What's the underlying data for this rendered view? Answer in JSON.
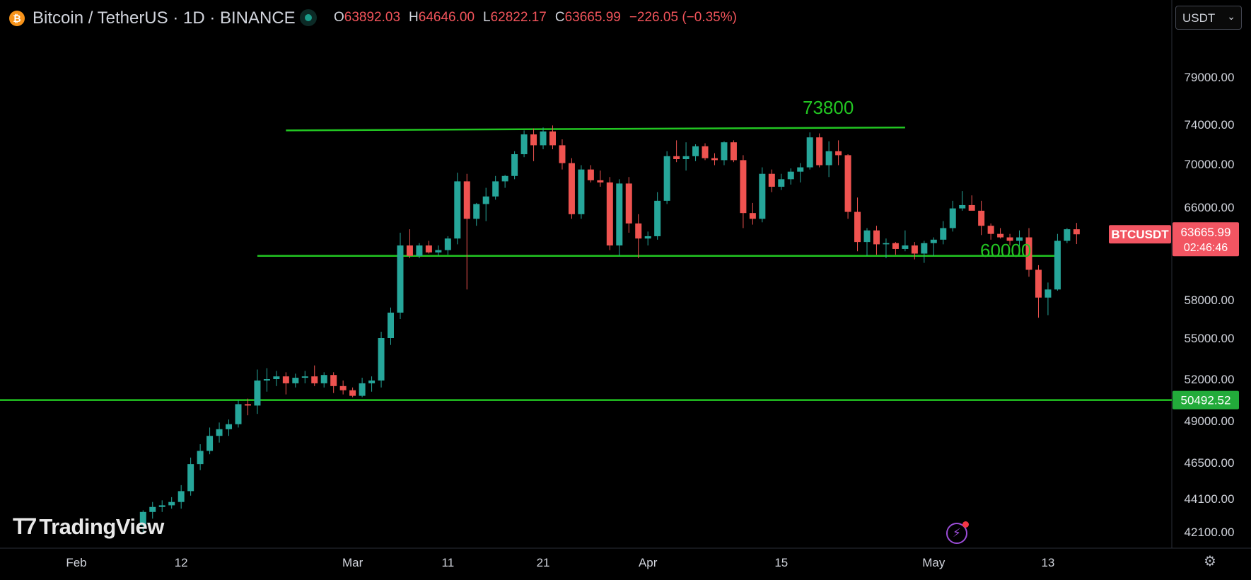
{
  "header": {
    "symbol_icon": "bitcoin-icon",
    "title": "Bitcoin / TetherUS · 1D · BINANCE",
    "ohlc": [
      {
        "key": "O",
        "value": "63892.03"
      },
      {
        "key": "H",
        "value": "64646.00"
      },
      {
        "key": "L",
        "value": "62822.17"
      },
      {
        "key": "C",
        "value": "63665.99"
      },
      {
        "key": "",
        "value": "−226.05 (−0.35%)"
      }
    ]
  },
  "currency_select": {
    "selected": "USDT"
  },
  "price_badges": {
    "symbol": "BTCUSDT",
    "last_price": "63665.99",
    "countdown": "02:46:46",
    "line_price": "50492.52"
  },
  "annotations": {
    "upper_level": "73800",
    "lower_level": "60000"
  },
  "branding": {
    "logo_text": "TradingView"
  },
  "colors": {
    "up": "#26a69a",
    "down": "#ef5350",
    "line": "#22c522",
    "badge_red": "#f25562",
    "badge_green": "#22ab3a"
  },
  "chart_data": {
    "type": "candlestick",
    "symbol": "BTCUSDT",
    "interval": "1D",
    "y_tick_labels": [
      "79000.00",
      "74000.00",
      "70000.00",
      "66000.00",
      "58000.00",
      "55000.00",
      "52000.00",
      "49000.00",
      "46500.00",
      "44100.00",
      "42100.00"
    ],
    "x_tick_labels": [
      {
        "label": "Feb",
        "date": "Feb 1"
      },
      {
        "label": "12",
        "date": "Feb 12"
      },
      {
        "label": "Mar",
        "date": "Mar 1"
      },
      {
        "label": "11",
        "date": "Mar 11"
      },
      {
        "label": "21",
        "date": "Mar 21"
      },
      {
        "label": "Apr",
        "date": "Apr 1"
      },
      {
        "label": "15",
        "date": "Apr 15"
      },
      {
        "label": "May",
        "date": "May 1"
      },
      {
        "label": "13",
        "date": "May 13"
      }
    ],
    "horizontal_lines": [
      {
        "price": 50492.52,
        "start": "Jan 24",
        "end": "May 30"
      },
      {
        "price": 61800,
        "start": "Feb 20",
        "end": "May 14"
      },
      {
        "price": 73400,
        "start": "Feb 23",
        "end": "Apr 28",
        "end_price": 73700
      }
    ],
    "candles": [
      [
        "Feb 8",
        42500,
        43400,
        42100,
        43300
      ],
      [
        "Feb 9",
        43300,
        43900,
        42900,
        43600
      ],
      [
        "Feb 10",
        43600,
        44000,
        43300,
        43700
      ],
      [
        "Feb 11",
        43700,
        44200,
        43500,
        43900
      ],
      [
        "Feb 12",
        43900,
        45000,
        43500,
        44600
      ],
      [
        "Feb 13",
        44600,
        46800,
        44300,
        46400
      ],
      [
        "Feb 14",
        46400,
        47600,
        46000,
        47200
      ],
      [
        "Feb 15",
        47200,
        48600,
        47000,
        48100
      ],
      [
        "Feb 16",
        48100,
        48900,
        47700,
        48500
      ],
      [
        "Feb 17",
        48500,
        49100,
        48100,
        48800
      ],
      [
        "Feb 18",
        48800,
        50500,
        48600,
        50200
      ],
      [
        "Feb 19",
        50200,
        50600,
        49400,
        50100
      ],
      [
        "Feb 20",
        50100,
        52700,
        49500,
        51900
      ],
      [
        "Feb 21",
        51900,
        52800,
        51100,
        52000
      ],
      [
        "Feb 22",
        52000,
        52600,
        51500,
        52200
      ],
      [
        "Feb 23",
        52200,
        52500,
        50900,
        51700
      ],
      [
        "Feb 24",
        51700,
        52400,
        51400,
        52100
      ],
      [
        "Feb 25",
        52100,
        52600,
        51700,
        52200
      ],
      [
        "Feb 26",
        52200,
        53000,
        51500,
        51700
      ],
      [
        "Feb 27",
        51700,
        52500,
        51400,
        52300
      ],
      [
        "Feb 28",
        52300,
        52500,
        51000,
        51500
      ],
      [
        "Feb 29",
        51500,
        51900,
        50900,
        51200
      ],
      [
        "Mar 1",
        51200,
        51400,
        50700,
        50800
      ],
      [
        "Mar 2",
        50800,
        52100,
        50700,
        51700
      ],
      [
        "Mar 3",
        51700,
        52200,
        51100,
        51900
      ],
      [
        "Mar 4",
        51900,
        55500,
        51400,
        55000
      ],
      [
        "Mar 5",
        55000,
        57400,
        54500,
        57000
      ],
      [
        "Mar 6",
        57000,
        63800,
        56500,
        62700
      ],
      [
        "Mar 7",
        62700,
        64100,
        61600,
        61800
      ],
      [
        "Mar 8",
        61800,
        62900,
        61600,
        62700
      ],
      [
        "Mar 9",
        62700,
        63100,
        62000,
        62100
      ],
      [
        "Mar 10",
        62100,
        62700,
        61800,
        62300
      ],
      [
        "Mar 11",
        62300,
        63500,
        61900,
        63300
      ],
      [
        "Mar 12",
        63300,
        69200,
        62800,
        68400
      ],
      [
        "Mar 13",
        68400,
        69100,
        58900,
        65000
      ],
      [
        "Mar 14",
        65000,
        66400,
        64400,
        66300
      ],
      [
        "Mar 15",
        66300,
        67800,
        64800,
        67000
      ],
      [
        "Mar 16",
        67000,
        68900,
        66700,
        68400
      ],
      [
        "Mar 17",
        68400,
        69000,
        67800,
        68900
      ],
      [
        "Mar 18",
        68900,
        71300,
        68600,
        71000
      ],
      [
        "Mar 19",
        71000,
        73400,
        70700,
        73000
      ],
      [
        "Mar 20",
        73000,
        73600,
        70300,
        71900
      ],
      [
        "Mar 21",
        71900,
        73700,
        71500,
        73300
      ],
      [
        "Mar 22",
        73300,
        73900,
        71500,
        71900
      ],
      [
        "Mar 23",
        71900,
        72500,
        69500,
        70100
      ],
      [
        "Mar 24",
        70100,
        70600,
        65000,
        65400
      ],
      [
        "Mar 25",
        65400,
        69900,
        65000,
        69500
      ],
      [
        "Mar 26",
        69500,
        69900,
        68300,
        68500
      ],
      [
        "Mar 27",
        68500,
        69400,
        67900,
        68300
      ],
      [
        "Mar 28",
        68300,
        68800,
        62300,
        62700
      ],
      [
        "Mar 29",
        62700,
        68600,
        61800,
        68200
      ],
      [
        "Mar 30",
        68200,
        68800,
        63800,
        64600
      ],
      [
        "Mar 31",
        64600,
        65400,
        61600,
        63300
      ],
      [
        "Apr 1",
        63300,
        63900,
        62700,
        63500
      ],
      [
        "Apr 2",
        63500,
        67400,
        63200,
        66600
      ],
      [
        "Apr 3",
        66600,
        71300,
        66300,
        70800
      ],
      [
        "Apr 4",
        70800,
        72400,
        70200,
        70500
      ],
      [
        "Apr 5",
        70500,
        72200,
        69400,
        70800
      ],
      [
        "Apr 6",
        70800,
        72000,
        70300,
        71800
      ],
      [
        "Apr 7",
        71800,
        72100,
        70400,
        70600
      ],
      [
        "Apr 8",
        70600,
        71100,
        69900,
        70400
      ],
      [
        "Apr 9",
        70400,
        72300,
        69900,
        72200
      ],
      [
        "Apr 10",
        72200,
        72400,
        70200,
        70400
      ],
      [
        "Apr 11",
        70400,
        70900,
        64200,
        65500
      ],
      [
        "Apr 12",
        65500,
        66400,
        64500,
        65000
      ],
      [
        "Apr 13",
        65000,
        69700,
        64700,
        69100
      ],
      [
        "Apr 14",
        69100,
        69500,
        67400,
        67900
      ],
      [
        "Apr 15",
        67900,
        69100,
        67600,
        68600
      ],
      [
        "Apr 16",
        68600,
        69600,
        68100,
        69300
      ],
      [
        "Apr 17",
        69300,
        70100,
        68300,
        69700
      ],
      [
        "Apr 18",
        69700,
        73200,
        69500,
        72700
      ],
      [
        "Apr 19",
        72700,
        73100,
        69700,
        69900
      ],
      [
        "Apr 20",
        69900,
        72300,
        68800,
        71300
      ],
      [
        "Apr 21",
        71300,
        72400,
        69900,
        70900
      ],
      [
        "Apr 22",
        70900,
        71000,
        65000,
        65600
      ],
      [
        "Apr 23",
        65600,
        66900,
        62200,
        63000
      ],
      [
        "Apr 24",
        63000,
        64200,
        61800,
        64000
      ],
      [
        "Apr 25",
        64000,
        64400,
        61900,
        62800
      ],
      [
        "Apr 26",
        62800,
        63300,
        61600,
        62900
      ],
      [
        "Apr 27",
        62900,
        63000,
        61900,
        62400
      ],
      [
        "Apr 28",
        62400,
        64000,
        62200,
        62700
      ],
      [
        "Apr 29",
        62700,
        63000,
        61500,
        62000
      ],
      [
        "Apr 30",
        62000,
        63100,
        61200,
        62900
      ],
      [
        "May 1",
        62900,
        63400,
        61800,
        63200
      ],
      [
        "May 2",
        63200,
        64800,
        62800,
        64200
      ],
      [
        "May 3",
        64200,
        66600,
        63900,
        65900
      ],
      [
        "May 4",
        65900,
        67500,
        65700,
        66200
      ],
      [
        "May 5",
        66200,
        67100,
        65800,
        65700
      ],
      [
        "May 6",
        65700,
        66600,
        63600,
        64400
      ],
      [
        "May 7",
        64400,
        64600,
        63200,
        63700
      ],
      [
        "May 8",
        63700,
        64200,
        63300,
        63400
      ],
      [
        "May 9",
        63400,
        63700,
        62700,
        63100
      ],
      [
        "May 10",
        63100,
        64000,
        62300,
        63400
      ],
      [
        "May 11",
        63400,
        64200,
        60000,
        60600
      ],
      [
        "May 12",
        60600,
        61000,
        56600,
        58200
      ],
      [
        "May 13",
        58200,
        59500,
        56800,
        58900
      ],
      [
        "May 14",
        58900,
        63700,
        58800,
        63100
      ],
      [
        "May 15",
        63100,
        64200,
        62900,
        64100
      ],
      [
        "May 16",
        64100,
        64646,
        62822,
        63665
      ]
    ]
  }
}
